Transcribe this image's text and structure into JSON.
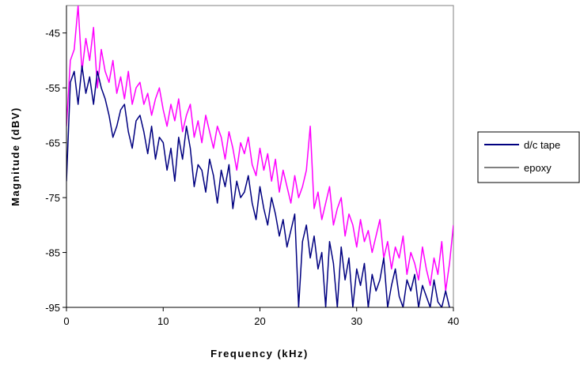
{
  "chart_data": {
    "type": "line",
    "xlabel": "Frequency (kHz)",
    "ylabel": "Magnitude (dBV)",
    "xlim": [
      0,
      40
    ],
    "ylim": [
      -95,
      -40
    ],
    "xticks": [
      "0",
      "10",
      "20",
      "30",
      "40"
    ],
    "yticks": [
      "-45",
      "-55",
      "-65",
      "-75",
      "-85",
      "-95"
    ],
    "xtick_values": [
      0,
      10,
      20,
      30,
      40
    ],
    "ytick_values": [
      -45,
      -55,
      -65,
      -75,
      -85,
      -95
    ],
    "grid": false,
    "legend_position": "right",
    "series": [
      {
        "name": "d/c tape",
        "color": "#000080",
        "x": [
          0,
          0.4,
          0.8,
          1.2,
          1.6,
          2.0,
          2.4,
          2.8,
          3.2,
          3.6,
          4.0,
          4.4,
          4.8,
          5.2,
          5.6,
          6.0,
          6.4,
          6.8,
          7.2,
          7.6,
          8.0,
          8.4,
          8.8,
          9.2,
          9.6,
          10.0,
          10.4,
          10.8,
          11.2,
          11.6,
          12.0,
          12.4,
          12.8,
          13.2,
          13.6,
          14.0,
          14.4,
          14.8,
          15.2,
          15.6,
          16.0,
          16.4,
          16.8,
          17.2,
          17.6,
          18.0,
          18.4,
          18.8,
          19.2,
          19.6,
          20.0,
          20.4,
          20.8,
          21.2,
          21.6,
          22.0,
          22.4,
          22.8,
          23.2,
          23.6,
          24.0,
          24.4,
          24.8,
          25.2,
          25.6,
          26.0,
          26.4,
          26.8,
          27.2,
          27.6,
          28.0,
          28.4,
          28.8,
          29.2,
          29.6,
          30.0,
          30.4,
          30.8,
          31.2,
          31.6,
          32.0,
          32.4,
          32.8,
          33.2,
          33.6,
          34.0,
          34.4,
          34.8,
          35.2,
          35.6,
          36.0,
          36.4,
          36.8,
          37.2,
          37.6,
          38.0,
          38.4,
          38.8,
          39.2,
          39.6
        ],
        "values": [
          -72,
          -54,
          -52,
          -58,
          -51,
          -56,
          -53,
          -58,
          -52,
          -55,
          -57,
          -60,
          -64,
          -62,
          -59,
          -58,
          -63,
          -66,
          -61,
          -60,
          -63,
          -67,
          -62,
          -68,
          -64,
          -65,
          -70,
          -66,
          -72,
          -64,
          -68,
          -62,
          -66,
          -73,
          -69,
          -70,
          -74,
          -68,
          -71,
          -76,
          -70,
          -73,
          -69,
          -77,
          -72,
          -75,
          -74,
          -71,
          -76,
          -79,
          -73,
          -77,
          -80,
          -75,
          -78,
          -82,
          -79,
          -84,
          -81,
          -78,
          -95,
          -83,
          -80,
          -86,
          -82,
          -88,
          -85,
          -95,
          -83,
          -87,
          -95,
          -84,
          -90,
          -86,
          -95,
          -88,
          -91,
          -87,
          -95,
          -89,
          -92,
          -90,
          -86,
          -95,
          -91,
          -88,
          -93,
          -95,
          -90,
          -92,
          -89,
          -95,
          -91,
          -93,
          -95,
          -90,
          -94,
          -95,
          -92,
          -95
        ]
      },
      {
        "name": "epoxy",
        "color": "#ff00ff",
        "x": [
          0,
          0.4,
          0.8,
          1.2,
          1.6,
          2.0,
          2.4,
          2.8,
          3.2,
          3.6,
          4.0,
          4.4,
          4.8,
          5.2,
          5.6,
          6.0,
          6.4,
          6.8,
          7.2,
          7.6,
          8.0,
          8.4,
          8.8,
          9.2,
          9.6,
          10.0,
          10.4,
          10.8,
          11.2,
          11.6,
          12.0,
          12.4,
          12.8,
          13.2,
          13.6,
          14.0,
          14.4,
          14.8,
          15.2,
          15.6,
          16.0,
          16.4,
          16.8,
          17.2,
          17.6,
          18.0,
          18.4,
          18.8,
          19.2,
          19.6,
          20.0,
          20.4,
          20.8,
          21.2,
          21.6,
          22.0,
          22.4,
          22.8,
          23.2,
          23.6,
          24.0,
          24.4,
          24.8,
          25.2,
          25.6,
          26.0,
          26.4,
          26.8,
          27.2,
          27.6,
          28.0,
          28.4,
          28.8,
          29.2,
          29.6,
          30.0,
          30.4,
          30.8,
          31.2,
          31.6,
          32.0,
          32.4,
          32.8,
          33.2,
          33.6,
          34.0,
          34.4,
          34.8,
          35.2,
          35.6,
          36.0,
          36.4,
          36.8,
          37.2,
          37.6,
          38.0,
          38.4,
          38.8,
          39.2,
          39.6,
          40.0
        ],
        "values": [
          -62,
          -50,
          -48,
          -40,
          -52,
          -46,
          -50,
          -44,
          -55,
          -48,
          -52,
          -54,
          -50,
          -56,
          -53,
          -57,
          -52,
          -58,
          -55,
          -54,
          -58,
          -56,
          -60,
          -57,
          -55,
          -59,
          -62,
          -58,
          -61,
          -57,
          -63,
          -60,
          -58,
          -64,
          -61,
          -65,
          -60,
          -63,
          -66,
          -62,
          -64,
          -68,
          -63,
          -66,
          -70,
          -65,
          -67,
          -64,
          -69,
          -71,
          -66,
          -70,
          -67,
          -72,
          -68,
          -74,
          -70,
          -73,
          -76,
          -71,
          -75,
          -73,
          -70,
          -62,
          -77,
          -74,
          -79,
          -76,
          -73,
          -80,
          -77,
          -75,
          -82,
          -78,
          -80,
          -84,
          -79,
          -83,
          -81,
          -85,
          -82,
          -79,
          -86,
          -83,
          -88,
          -84,
          -86,
          -82,
          -89,
          -85,
          -87,
          -90,
          -84,
          -88,
          -91,
          -86,
          -89,
          -83,
          -92,
          -87,
          -80
        ]
      }
    ]
  }
}
